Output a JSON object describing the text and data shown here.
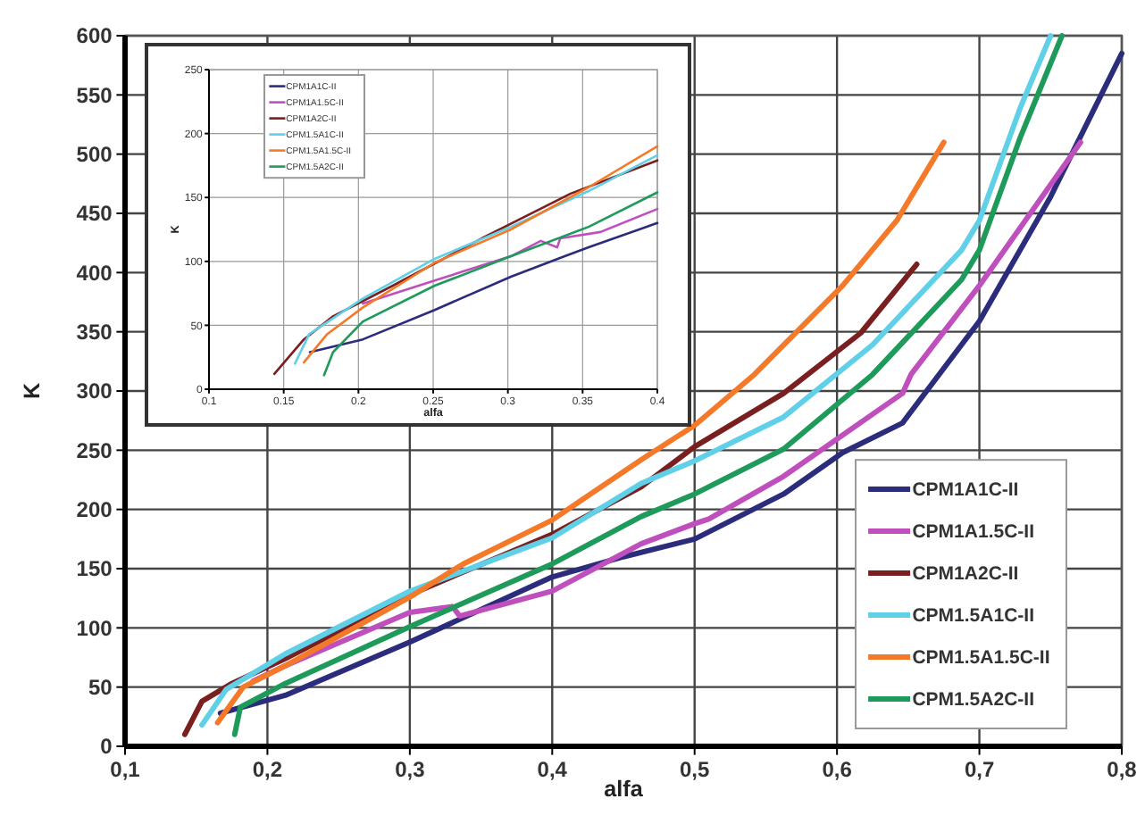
{
  "chart_data": [
    {
      "type": "line",
      "xlabel": "alfa",
      "ylabel": "K",
      "xlim": [
        0.1,
        0.8
      ],
      "ylim": [
        0,
        600
      ],
      "xticks": [
        {
          "value": 0.1,
          "label": "0,1"
        },
        {
          "value": 0.2,
          "label": "0,2"
        },
        {
          "value": 0.3,
          "label": "0,3"
        },
        {
          "value": 0.4,
          "label": "0,4"
        },
        {
          "value": 0.5,
          "label": "0,5"
        },
        {
          "value": 0.6,
          "label": "0,6"
        },
        {
          "value": 0.7,
          "label": "0,7"
        },
        {
          "value": 0.8,
          "label": "0,8"
        }
      ],
      "yticks": [
        0,
        50,
        100,
        150,
        200,
        250,
        300,
        350,
        400,
        450,
        500,
        550,
        600
      ],
      "grid": true,
      "legend": "bottom right",
      "marker": "none",
      "line_style": "solid",
      "series": [
        {
          "name": "CPM1A1C-II",
          "color": "#2b2c7c",
          "x": [
            0.167,
            0.2125,
            0.3,
            0.4,
            0.45,
            0.5,
            0.5625,
            0.604,
            0.646,
            0.7,
            0.75,
            0.8
          ],
          "values": [
            28,
            43,
            88,
            143,
            160,
            175,
            213,
            248,
            273,
            359,
            464,
            585
          ]
        },
        {
          "name": "CPM1A1.5C-II",
          "color": "#c04fbe",
          "x": [
            0.19,
            0.2125,
            0.3,
            0.33,
            0.335,
            0.4,
            0.4625,
            0.5,
            0.51,
            0.5625,
            0.646,
            0.652,
            0.7,
            0.771
          ],
          "values": [
            55,
            68,
            113,
            118,
            110,
            131,
            171,
            188,
            192,
            228,
            298,
            314,
            389,
            510
          ]
        },
        {
          "name": "CPM1A2C-II",
          "color": "#7a1f1f",
          "x": [
            0.142,
            0.154,
            0.175,
            0.2125,
            0.3,
            0.4,
            0.4625,
            0.5,
            0.5625,
            0.6167,
            0.656
          ],
          "values": [
            10,
            38,
            53,
            74,
            128,
            179,
            219,
            253,
            298,
            349,
            407
          ]
        },
        {
          "name": "CPM1.5A1C-II",
          "color": "#5fd0e8",
          "x": [
            0.154,
            0.171,
            0.2125,
            0.3,
            0.4,
            0.4625,
            0.5,
            0.5625,
            0.625,
            0.6875,
            0.7,
            0.729,
            0.75
          ],
          "values": [
            18,
            48,
            78,
            131,
            176,
            222,
            241,
            278,
            339,
            419,
            444,
            540,
            600
          ]
        },
        {
          "name": "CPM1.5A1.5C-II",
          "color": "#f47a2a",
          "x": [
            0.165,
            0.183,
            0.2125,
            0.3,
            0.3375,
            0.4,
            0.4625,
            0.5,
            0.542,
            0.604,
            0.642,
            0.675
          ],
          "values": [
            20,
            50,
            68,
            126,
            154,
            191,
            242,
            271,
            314,
            389,
            444,
            510
          ]
        },
        {
          "name": "CPM1.5A2C-II",
          "color": "#1e9a5a",
          "x": [
            0.177,
            0.181,
            0.2125,
            0.3,
            0.4,
            0.4625,
            0.5,
            0.5625,
            0.625,
            0.6875,
            0.7,
            0.729,
            0.758
          ],
          "values": [
            10,
            33,
            53,
            101,
            154,
            194,
            213,
            251,
            314,
            394,
            419,
            515,
            600
          ]
        }
      ]
    },
    {
      "type": "line",
      "xlabel": "alfa",
      "ylabel": "K",
      "xlim": [
        0.1,
        0.4
      ],
      "ylim": [
        0,
        250
      ],
      "xticks": [
        0.1,
        0.15,
        0.2,
        0.25,
        0.3,
        0.35,
        0.4
      ],
      "yticks": [
        0,
        50,
        100,
        150,
        200,
        250
      ],
      "grid": true,
      "legend": "top left",
      "marker": "none",
      "line_style": "solid",
      "series": [
        {
          "name": "CPM1A1C-II",
          "color": "#2b2c7c",
          "x": [
            0.1675,
            0.203,
            0.251,
            0.302,
            0.338,
            0.354,
            0.4
          ],
          "values": [
            29,
            39,
            62,
            88,
            104,
            111,
            130
          ]
        },
        {
          "name": "CPM1A1.5C-II",
          "color": "#c04fbe",
          "x": [
            0.203,
            0.251,
            0.302,
            0.322,
            0.333,
            0.335,
            0.362,
            0.4
          ],
          "values": [
            67,
            85,
            104,
            116,
            111,
            118,
            123,
            141
          ]
        },
        {
          "name": "CPM1A2C-II",
          "color": "#7a1f1f",
          "x": [
            0.1437,
            0.1635,
            0.183,
            0.223,
            0.2825,
            0.342,
            0.4
          ],
          "values": [
            12,
            39,
            57,
            81,
            118,
            153,
            179
          ]
        },
        {
          "name": "CPM1.5A1C-II",
          "color": "#5fd0e8",
          "x": [
            0.1575,
            0.167,
            0.203,
            0.251,
            0.302,
            0.354,
            0.4
          ],
          "values": [
            20,
            43,
            71,
            102,
            127,
            155,
            183
          ]
        },
        {
          "name": "CPM1.5A1.5C-II",
          "color": "#f47a2a",
          "x": [
            0.1635,
            0.179,
            0.203,
            0.251,
            0.302,
            0.354,
            0.4
          ],
          "values": [
            21,
            43,
            64,
            99,
            125,
            158,
            190
          ]
        },
        {
          "name": "CPM1.5A2C-II",
          "color": "#1e9a5a",
          "x": [
            0.177,
            0.183,
            0.203,
            0.251,
            0.302,
            0.354,
            0.4
          ],
          "values": [
            11,
            29,
            53,
            81,
            104,
            127,
            154
          ]
        }
      ]
    }
  ]
}
